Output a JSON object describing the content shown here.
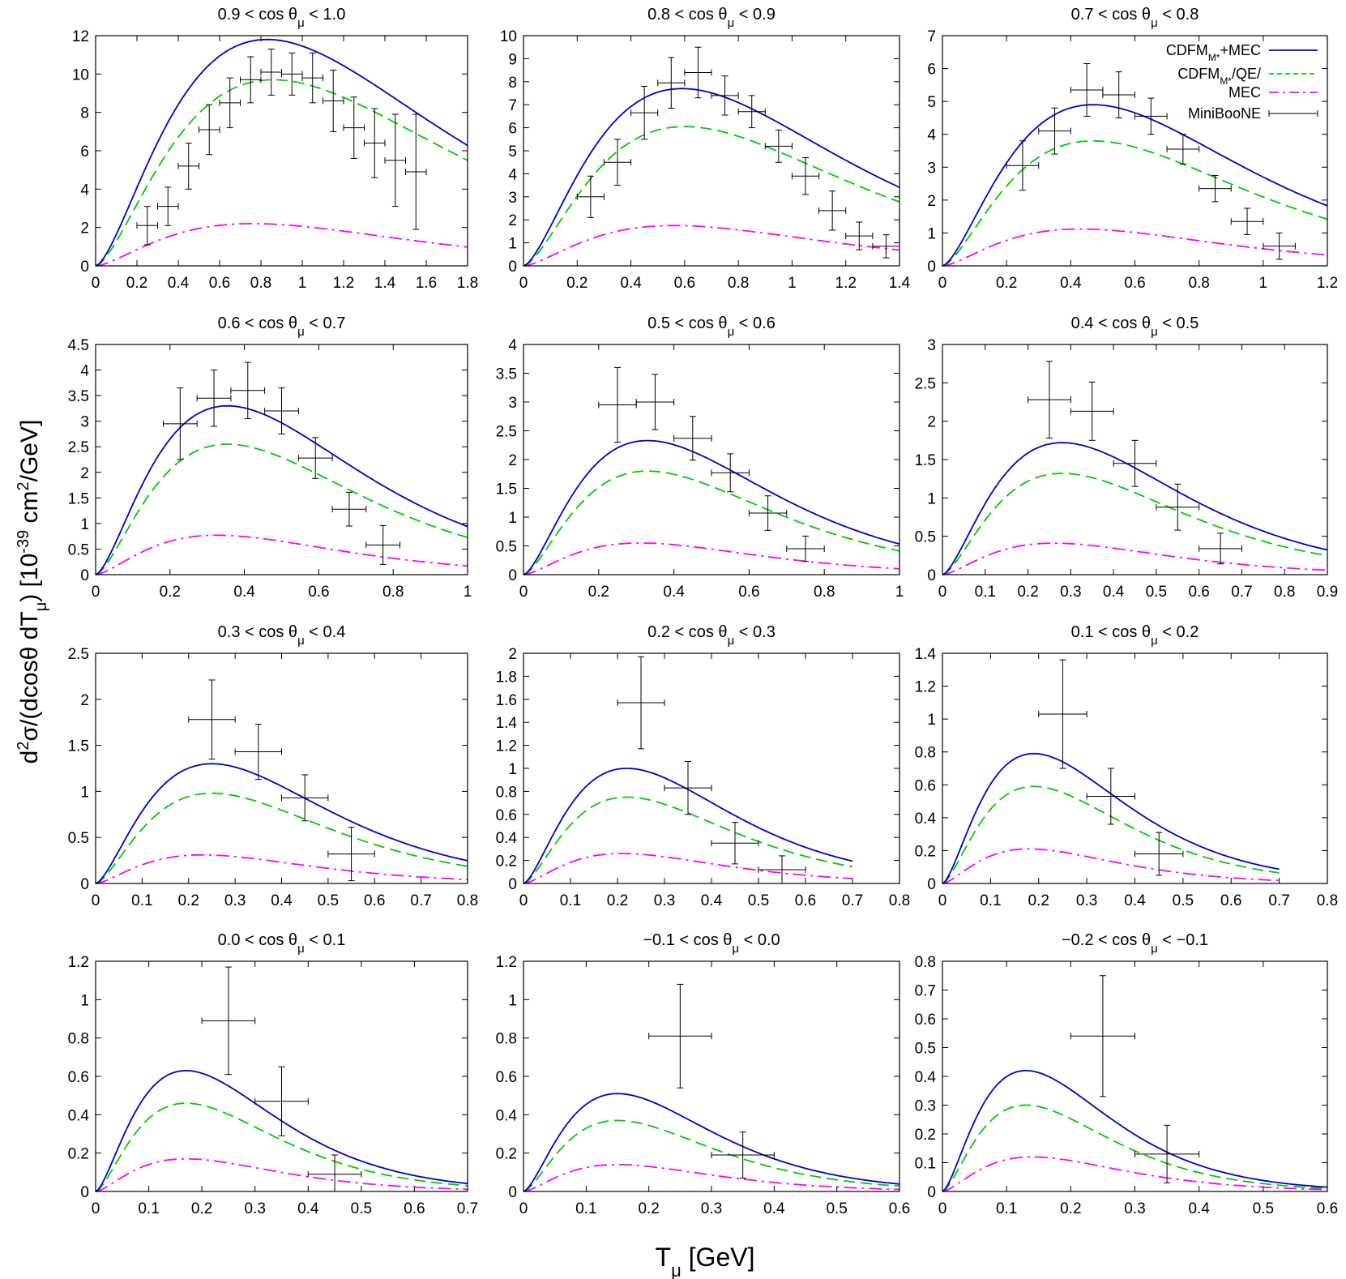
{
  "figure": {
    "ylabel": "d²σ/(dcosθ dTμ) [10⁻³⁹ cm²/GeV]",
    "xlabel": "Tμ [GeV]"
  },
  "legend": [
    {
      "name": "CDFM_M*+MEC",
      "main": "CDFM",
      "sub": "M*",
      "rest": "+MEC",
      "color": "#0000cc",
      "style": "solid"
    },
    {
      "name": "CDFM_M*/QE/",
      "main": "CDFM",
      "sub": "M*",
      "rest": "/QE/",
      "color": "#00cc00",
      "style": "dashed"
    },
    {
      "name": "MEC",
      "main": "MEC",
      "sub": "",
      "rest": "",
      "color": "#ff00ff",
      "style": "dashdot"
    },
    {
      "name": "MiniBooNE",
      "main": "MiniBooNE",
      "sub": "",
      "rest": "",
      "color": "#000000",
      "style": "errorbar"
    }
  ],
  "chart_data": [
    {
      "type": "line",
      "title_pre": "0.9 < cos θ",
      "title_sub": "μ",
      "title_post": " < 1.0",
      "xlim": [
        0,
        1.8
      ],
      "ylim": [
        0,
        12
      ],
      "xticks": [
        "0",
        "0.2",
        "0.4",
        "0.6",
        "0.8",
        "1",
        "1.2",
        "1.4",
        "1.6",
        "1.8"
      ],
      "yticks": [
        "0",
        "2",
        "4",
        "6",
        "8",
        "10",
        "12"
      ],
      "total": {
        "peak_x": 0.83,
        "peak_y": 11.8,
        "xend": 1.8
      },
      "qe": {
        "peak_x": 0.86,
        "peak_y": 9.7,
        "xend": 1.8
      },
      "mec": {
        "peak_x": 0.76,
        "peak_y": 2.2,
        "xend": 1.8
      },
      "data": [
        [
          0.25,
          2.1,
          0.05,
          1.0
        ],
        [
          0.35,
          3.1,
          0.05,
          1.0
        ],
        [
          0.45,
          5.2,
          0.05,
          1.2
        ],
        [
          0.55,
          7.1,
          0.05,
          1.3
        ],
        [
          0.65,
          8.5,
          0.05,
          1.3
        ],
        [
          0.75,
          9.7,
          0.05,
          1.2
        ],
        [
          0.85,
          10.1,
          0.05,
          1.2
        ],
        [
          0.95,
          10.0,
          0.05,
          1.1
        ],
        [
          1.05,
          9.8,
          0.05,
          1.3
        ],
        [
          1.15,
          8.6,
          0.05,
          1.6
        ],
        [
          1.25,
          7.2,
          0.05,
          1.6
        ],
        [
          1.35,
          6.4,
          0.05,
          1.8
        ],
        [
          1.45,
          5.5,
          0.05,
          2.4
        ],
        [
          1.55,
          4.9,
          0.05,
          3.0
        ]
      ]
    },
    {
      "type": "line",
      "title_pre": "0.8 < cos θ",
      "title_sub": "μ",
      "title_post": " < 0.9",
      "xlim": [
        0,
        1.4
      ],
      "ylim": [
        0,
        10
      ],
      "xticks": [
        "0",
        "0.2",
        "0.4",
        "0.6",
        "0.8",
        "1",
        "1.2",
        "1.4"
      ],
      "yticks": [
        "0",
        "1",
        "2",
        "3",
        "4",
        "5",
        "6",
        "7",
        "8",
        "9",
        "10"
      ],
      "total": {
        "peak_x": 0.59,
        "peak_y": 7.7,
        "xend": 1.4
      },
      "qe": {
        "peak_x": 0.6,
        "peak_y": 6.05,
        "xend": 1.4
      },
      "mec": {
        "peak_x": 0.56,
        "peak_y": 1.75,
        "xend": 1.4
      },
      "data": [
        [
          0.25,
          3.0,
          0.05,
          0.9
        ],
        [
          0.35,
          4.5,
          0.05,
          1.0
        ],
        [
          0.45,
          6.65,
          0.05,
          1.15
        ],
        [
          0.55,
          7.95,
          0.05,
          1.1
        ],
        [
          0.65,
          8.4,
          0.05,
          1.1
        ],
        [
          0.75,
          7.4,
          0.05,
          0.85
        ],
        [
          0.85,
          6.7,
          0.05,
          0.7
        ],
        [
          0.95,
          5.2,
          0.05,
          0.7
        ],
        [
          1.05,
          3.9,
          0.05,
          0.8
        ],
        [
          1.15,
          2.4,
          0.05,
          0.85
        ],
        [
          1.25,
          1.3,
          0.05,
          0.6
        ],
        [
          1.35,
          0.85,
          0.05,
          0.5
        ]
      ]
    },
    {
      "type": "line",
      "title_pre": "0.7 < cos θ",
      "title_sub": "μ",
      "title_post": " < 0.8",
      "xlim": [
        0,
        1.2
      ],
      "ylim": [
        0,
        7
      ],
      "xticks": [
        "0",
        "0.2",
        "0.4",
        "0.6",
        "0.8",
        "1",
        "1.2"
      ],
      "yticks": [
        "0",
        "1",
        "2",
        "3",
        "4",
        "5",
        "6",
        "7"
      ],
      "total": {
        "peak_x": 0.47,
        "peak_y": 4.9,
        "xend": 1.2
      },
      "qe": {
        "peak_x": 0.47,
        "peak_y": 3.8,
        "xend": 1.2
      },
      "mec": {
        "peak_x": 0.43,
        "peak_y": 1.12,
        "xend": 1.2
      },
      "data": [
        [
          0.25,
          3.05,
          0.05,
          0.75
        ],
        [
          0.35,
          4.1,
          0.05,
          0.7
        ],
        [
          0.45,
          5.35,
          0.05,
          0.8
        ],
        [
          0.55,
          5.2,
          0.05,
          0.7
        ],
        [
          0.65,
          4.55,
          0.05,
          0.55
        ],
        [
          0.75,
          3.55,
          0.05,
          0.45
        ],
        [
          0.85,
          2.35,
          0.05,
          0.4
        ],
        [
          0.95,
          1.35,
          0.05,
          0.4
        ],
        [
          1.05,
          0.6,
          0.05,
          0.4
        ]
      ]
    },
    {
      "type": "line",
      "title_pre": "0.6 < cos θ",
      "title_sub": "μ",
      "title_post": " < 0.7",
      "xlim": [
        0,
        1.1
      ],
      "ylim": [
        0,
        4.5
      ],
      "xticks": [
        "0",
        "0.2",
        "0.4",
        "0.6",
        "0.8",
        "1"
      ],
      "yticks": [
        "0",
        "0.5",
        "1",
        "1.5",
        "2",
        "2.5",
        "3",
        "3.5",
        "4",
        "4.5"
      ],
      "total": {
        "peak_x": 0.39,
        "peak_y": 3.3,
        "xend": 1.1
      },
      "qe": {
        "peak_x": 0.39,
        "peak_y": 2.55,
        "xend": 1.1
      },
      "mec": {
        "peak_x": 0.36,
        "peak_y": 0.77,
        "xend": 1.1
      },
      "data": [
        [
          0.25,
          2.95,
          0.05,
          0.7
        ],
        [
          0.35,
          3.45,
          0.05,
          0.55
        ],
        [
          0.45,
          3.6,
          0.05,
          0.55
        ],
        [
          0.55,
          3.2,
          0.05,
          0.45
        ],
        [
          0.65,
          2.28,
          0.05,
          0.4
        ],
        [
          0.75,
          1.28,
          0.05,
          0.33
        ],
        [
          0.85,
          0.58,
          0.05,
          0.38
        ]
      ]
    },
    {
      "type": "line",
      "title_pre": "0.5 < cos θ",
      "title_sub": "μ",
      "title_post": " < 0.6",
      "xlim": [
        0,
        1
      ],
      "ylim": [
        0,
        4
      ],
      "xticks": [
        "0",
        "0.2",
        "0.4",
        "0.6",
        "0.8",
        "1"
      ],
      "yticks": [
        "0",
        "0.5",
        "1",
        "1.5",
        "2",
        "2.5",
        "3",
        "3.5",
        "4"
      ],
      "total": {
        "peak_x": 0.33,
        "peak_y": 2.33,
        "xend": 1.0
      },
      "qe": {
        "peak_x": 0.33,
        "peak_y": 1.8,
        "xend": 1.0
      },
      "mec": {
        "peak_x": 0.31,
        "peak_y": 0.55,
        "xend": 1.0
      },
      "data": [
        [
          0.25,
          2.95,
          0.05,
          0.65
        ],
        [
          0.35,
          3.0,
          0.05,
          0.48
        ],
        [
          0.45,
          2.37,
          0.05,
          0.38
        ],
        [
          0.55,
          1.77,
          0.05,
          0.33
        ],
        [
          0.65,
          1.07,
          0.05,
          0.3
        ],
        [
          0.75,
          0.45,
          0.05,
          0.22
        ]
      ]
    },
    {
      "type": "line",
      "title_pre": "0.4 < cos θ",
      "title_sub": "μ",
      "title_post": " < 0.5",
      "xlim": [
        0,
        0.9
      ],
      "ylim": [
        0,
        3
      ],
      "xticks": [
        "0",
        "0.1",
        "0.2",
        "0.3",
        "0.4",
        "0.5",
        "0.6",
        "0.7",
        "0.8",
        "0.9"
      ],
      "yticks": [
        "0",
        "0.5",
        "1",
        "1.5",
        "2",
        "2.5",
        "3"
      ],
      "total": {
        "peak_x": 0.28,
        "peak_y": 1.72,
        "xend": 0.9
      },
      "qe": {
        "peak_x": 0.28,
        "peak_y": 1.32,
        "xend": 0.9
      },
      "mec": {
        "peak_x": 0.26,
        "peak_y": 0.41,
        "xend": 0.9
      },
      "data": [
        [
          0.25,
          2.28,
          0.05,
          0.5
        ],
        [
          0.35,
          2.13,
          0.05,
          0.38
        ],
        [
          0.45,
          1.45,
          0.05,
          0.3
        ],
        [
          0.55,
          0.88,
          0.05,
          0.3
        ],
        [
          0.65,
          0.34,
          0.05,
          0.2
        ]
      ]
    },
    {
      "type": "line",
      "title_pre": "0.3 < cos θ",
      "title_sub": "μ",
      "title_post": " < 0.4",
      "xlim": [
        0,
        0.8
      ],
      "ylim": [
        0,
        2.5
      ],
      "xticks": [
        "0",
        "0.1",
        "0.2",
        "0.3",
        "0.4",
        "0.5",
        "0.6",
        "0.7",
        "0.8"
      ],
      "yticks": [
        "0",
        "0.5",
        "1",
        "1.5",
        "2",
        "2.5"
      ],
      "total": {
        "peak_x": 0.25,
        "peak_y": 1.3,
        "xend": 0.8
      },
      "qe": {
        "peak_x": 0.25,
        "peak_y": 0.98,
        "xend": 0.8
      },
      "mec": {
        "peak_x": 0.23,
        "peak_y": 0.31,
        "xend": 0.8
      },
      "data": [
        [
          0.25,
          1.78,
          0.05,
          0.43
        ],
        [
          0.35,
          1.43,
          0.05,
          0.3
        ],
        [
          0.45,
          0.93,
          0.05,
          0.25
        ],
        [
          0.55,
          0.32,
          0.05,
          0.29
        ]
      ]
    },
    {
      "type": "line",
      "title_pre": "0.2 < cos θ",
      "title_sub": "μ",
      "title_post": " < 0.3",
      "xlim": [
        0,
        0.8
      ],
      "ylim": [
        0,
        2
      ],
      "xticks": [
        "0",
        "0.1",
        "0.2",
        "0.3",
        "0.4",
        "0.5",
        "0.6",
        "0.7",
        "0.8"
      ],
      "yticks": [
        "0",
        "0.2",
        "0.4",
        "0.6",
        "0.8",
        "1",
        "1.2",
        "1.4",
        "1.6",
        "1.8",
        "2"
      ],
      "total": {
        "peak_x": 0.22,
        "peak_y": 1.0,
        "xend": 0.7
      },
      "qe": {
        "peak_x": 0.22,
        "peak_y": 0.75,
        "xend": 0.7
      },
      "mec": {
        "peak_x": 0.21,
        "peak_y": 0.26,
        "xend": 0.7
      },
      "data": [
        [
          0.25,
          1.57,
          0.05,
          0.4
        ],
        [
          0.35,
          0.83,
          0.05,
          0.23
        ],
        [
          0.45,
          0.35,
          0.05,
          0.18
        ],
        [
          0.55,
          0.12,
          0.05,
          0.12
        ]
      ]
    },
    {
      "type": "line",
      "title_pre": "0.1 < cos θ",
      "title_sub": "μ",
      "title_post": " < 0.2",
      "xlim": [
        0,
        0.8
      ],
      "ylim": [
        0,
        1.4
      ],
      "xticks": [
        "0",
        "0.1",
        "0.2",
        "0.3",
        "0.4",
        "0.5",
        "0.6",
        "0.7",
        "0.8"
      ],
      "yticks": [
        "0",
        "0.2",
        "0.4",
        "0.6",
        "0.8",
        "1",
        "1.2",
        "1.4"
      ],
      "total": {
        "peak_x": 0.19,
        "peak_y": 0.79,
        "xend": 0.7
      },
      "qe": {
        "peak_x": 0.19,
        "peak_y": 0.59,
        "xend": 0.7
      },
      "mec": {
        "peak_x": 0.18,
        "peak_y": 0.21,
        "xend": 0.7
      },
      "data": [
        [
          0.25,
          1.03,
          0.05,
          0.33
        ],
        [
          0.35,
          0.53,
          0.05,
          0.17
        ],
        [
          0.45,
          0.18,
          0.05,
          0.13
        ]
      ]
    },
    {
      "type": "line",
      "title_pre": "0.0 < cos θ",
      "title_sub": "μ",
      "title_post": " < 0.1",
      "xlim": [
        0,
        0.7
      ],
      "ylim": [
        0,
        1.2
      ],
      "xticks": [
        "0",
        "0.1",
        "0.2",
        "0.3",
        "0.4",
        "0.5",
        "0.6",
        "0.7"
      ],
      "yticks": [
        "0",
        "0.2",
        "0.4",
        "0.6",
        "0.8",
        "1",
        "1.2"
      ],
      "total": {
        "peak_x": 0.17,
        "peak_y": 0.63,
        "xend": 0.7
      },
      "qe": {
        "peak_x": 0.17,
        "peak_y": 0.46,
        "xend": 0.7
      },
      "mec": {
        "peak_x": 0.17,
        "peak_y": 0.17,
        "xend": 0.7
      },
      "data": [
        [
          0.25,
          0.89,
          0.05,
          0.28
        ],
        [
          0.35,
          0.47,
          0.05,
          0.18
        ],
        [
          0.45,
          0.09,
          0.05,
          0.1
        ]
      ]
    },
    {
      "type": "line",
      "title_pre": "−0.1 < cos θ",
      "title_sub": "μ",
      "title_post": " < 0.0",
      "xlim": [
        0,
        0.6
      ],
      "ylim": [
        0,
        1.2
      ],
      "xticks": [
        "0",
        "0.1",
        "0.2",
        "0.3",
        "0.4",
        "0.5",
        "0.6"
      ],
      "yticks": [
        "0",
        "0.2",
        "0.4",
        "0.6",
        "0.8",
        "1",
        "1.2"
      ],
      "total": {
        "peak_x": 0.15,
        "peak_y": 0.51,
        "xend": 0.6
      },
      "qe": {
        "peak_x": 0.15,
        "peak_y": 0.37,
        "xend": 0.6
      },
      "mec": {
        "peak_x": 0.15,
        "peak_y": 0.14,
        "xend": 0.6
      },
      "data": [
        [
          0.25,
          0.81,
          0.05,
          0.27
        ],
        [
          0.35,
          0.19,
          0.05,
          0.12
        ]
      ]
    },
    {
      "type": "line",
      "title_pre": "−0.2 < cos θ",
      "title_sub": "μ",
      "title_post": " < −0.1",
      "xlim": [
        0,
        0.6
      ],
      "ylim": [
        0,
        0.8
      ],
      "xticks": [
        "0",
        "0.1",
        "0.2",
        "0.3",
        "0.4",
        "0.5",
        "0.6"
      ],
      "yticks": [
        "0",
        "0.1",
        "0.2",
        "0.3",
        "0.4",
        "0.5",
        "0.6",
        "0.7",
        "0.8"
      ],
      "total": {
        "peak_x": 0.13,
        "peak_y": 0.42,
        "xend": 0.6
      },
      "qe": {
        "peak_x": 0.13,
        "peak_y": 0.3,
        "xend": 0.6
      },
      "mec": {
        "peak_x": 0.14,
        "peak_y": 0.12,
        "xend": 0.6
      },
      "data": [
        [
          0.25,
          0.54,
          0.05,
          0.21
        ],
        [
          0.35,
          0.13,
          0.05,
          0.1
        ]
      ]
    }
  ]
}
